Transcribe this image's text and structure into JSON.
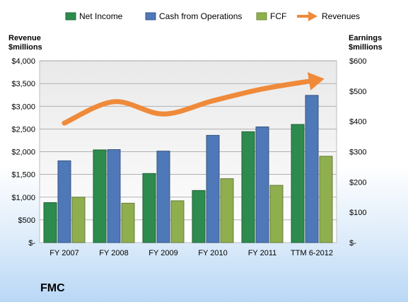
{
  "chart_data": {
    "type": "bar",
    "title": "",
    "company": "FMC",
    "categories": [
      "FY 2007",
      "FY 2008",
      "FY 2009",
      "FY 2010",
      "FY 2011",
      "TTM 6-2012"
    ],
    "left_axis": {
      "title_line1": "Revenue",
      "title_line2": "$millions",
      "min": 0,
      "max": 4000,
      "step": 500,
      "tick_labels": [
        "$-",
        "$500",
        "$1,000",
        "$1,500",
        "$2,000",
        "$2,500",
        "$3,000",
        "$3,500",
        "$4,000"
      ]
    },
    "right_axis": {
      "title_line1": "Earnings",
      "title_line2": "$millions",
      "min": 0,
      "max": 600,
      "step": 100,
      "tick_labels": [
        "$-",
        "$100",
        "$200",
        "$300",
        "$400",
        "$500",
        "$600"
      ]
    },
    "series": [
      {
        "name": "Net Income",
        "axis": "right",
        "kind": "bar",
        "color": "#2e8b4e",
        "values": [
          132,
          306,
          228,
          172,
          366,
          390
        ]
      },
      {
        "name": "Cash from Operations",
        "axis": "right",
        "kind": "bar",
        "color": "#4f78b8",
        "values": [
          270,
          307,
          302,
          354,
          382,
          486
        ]
      },
      {
        "name": "FCF",
        "axis": "right",
        "kind": "bar",
        "color": "#8faf4f",
        "values": [
          150,
          130,
          138,
          211,
          189,
          285
        ]
      },
      {
        "name": "Revenues",
        "axis": "left",
        "kind": "line",
        "color": "#ef8a3a",
        "values": [
          2630,
          3100,
          2830,
          3120,
          3380,
          3560
        ]
      }
    ],
    "grid": true,
    "legend_position": "top"
  }
}
